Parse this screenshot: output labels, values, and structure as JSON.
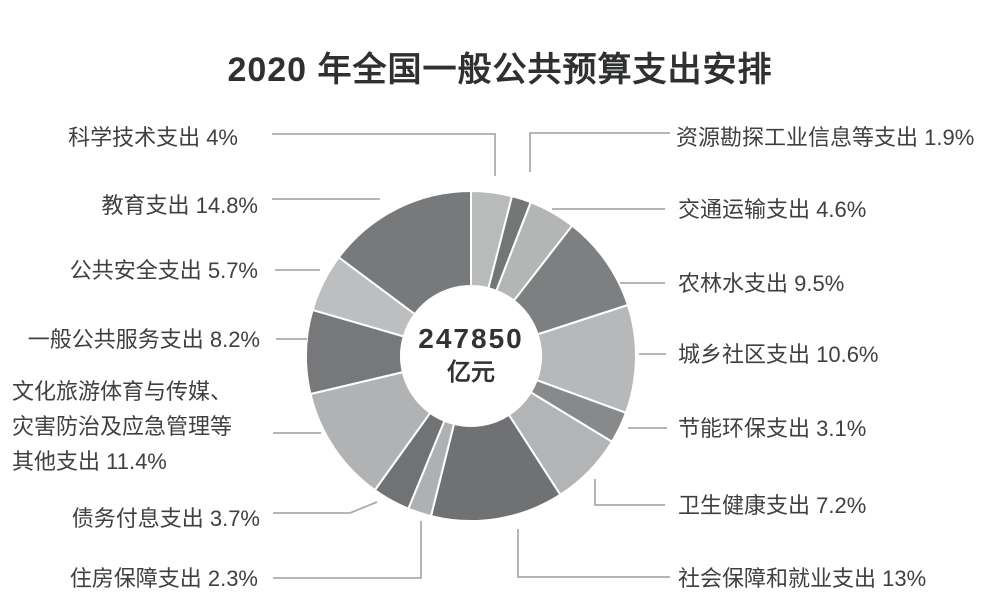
{
  "title": "2020 年全国一般公共预算支出安排",
  "center": {
    "value": "247850",
    "unit": "亿元"
  },
  "chart_data": {
    "type": "pie",
    "subtype": "donut",
    "title": "2020 年全国一般公共预算支出安排",
    "total_label": "247850 亿元",
    "start_angle_deg": 0,
    "direction": "clockwise",
    "legend_position": "none",
    "values_unit": "percent",
    "slices": [
      {
        "name": "科学技术支出",
        "pct": 4,
        "label": "科学技术支出 4%",
        "color": "#b9bbbb",
        "tone": "light"
      },
      {
        "name": "资源勘探工业信息等支出",
        "pct": 1.9,
        "label": "资源勘探工业信息等支出 1.9%",
        "color": "#737577",
        "tone": "dark"
      },
      {
        "name": "交通运输支出",
        "pct": 4.6,
        "label": "交通运输支出 4.6%",
        "color": "#b4b6b6",
        "tone": "light"
      },
      {
        "name": "农林水支出",
        "pct": 9.5,
        "label": "农林水支出 9.5%",
        "color": "#7d7f81",
        "tone": "dark"
      },
      {
        "name": "城乡社区支出",
        "pct": 10.6,
        "label": "城乡社区支出 10.6%",
        "color": "#b6b8ba",
        "tone": "light"
      },
      {
        "name": "节能环保支出",
        "pct": 3.1,
        "label": "节能环保支出 3.1%",
        "color": "#87898b",
        "tone": "dark"
      },
      {
        "name": "卫生健康支出",
        "pct": 7.2,
        "label": "卫生健康支出 7.2%",
        "color": "#b2b4b6",
        "tone": "light"
      },
      {
        "name": "社会保障和就业支出",
        "pct": 13,
        "label": "社会保障和就业支出 13%",
        "color": "#6f7173",
        "tone": "dark"
      },
      {
        "name": "住房保障支出",
        "pct": 2.3,
        "label": "住房保障支出 2.3%",
        "color": "#aeb0b2",
        "tone": "light"
      },
      {
        "name": "债务付息支出",
        "pct": 3.7,
        "label": "债务付息支出 3.7%",
        "color": "#707274",
        "tone": "dark"
      },
      {
        "name": "文化旅游体育与传媒、灾害防治及应急管理等其他支出",
        "pct": 11.4,
        "label": "文化旅游体育与传媒、灾害防治及应急管理等其他支出 11.4%",
        "label_lines": [
          "文化旅游体育与传媒、",
          "灾害防治及应急管理等",
          "其他支出 11.4%"
        ],
        "color": "#b0b2b4",
        "tone": "light"
      },
      {
        "name": "一般公共服务支出",
        "pct": 8.2,
        "label": "一般公共服务支出 8.2%",
        "color": "#76787a",
        "tone": "dark"
      },
      {
        "name": "公共安全支出",
        "pct": 5.7,
        "label": "公共安全支出 5.7%",
        "color": "#bcbec0",
        "tone": "light"
      },
      {
        "name": "教育支出",
        "pct": 14.8,
        "label": "教育支出 14.8%",
        "color": "#77797b",
        "tone": "dark"
      }
    ]
  },
  "colors": {
    "leader_line": "#aaacae",
    "label_text": "#3e4042",
    "title_text": "#2e3032",
    "slice_gap": "#ffffff"
  }
}
